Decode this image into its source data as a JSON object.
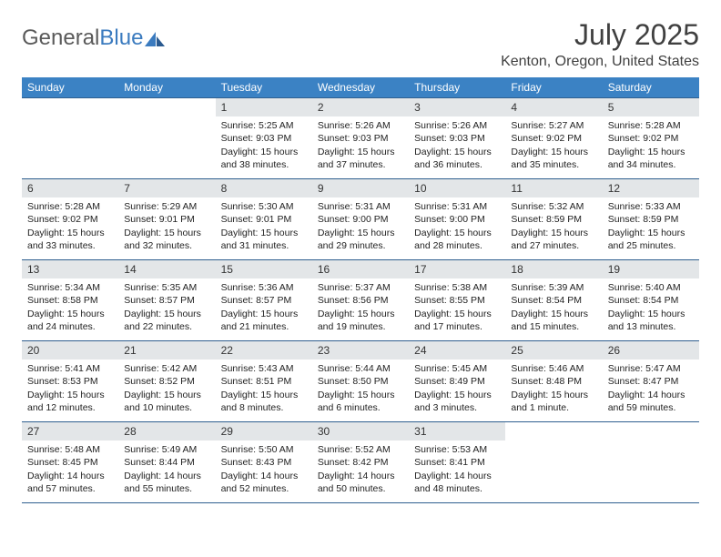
{
  "logo": {
    "word1": "General",
    "word2": "Blue"
  },
  "title": "July 2025",
  "location": "Kenton, Oregon, United States",
  "colors": {
    "header_bar": "#3b82c4",
    "header_text": "#ffffff",
    "rule": "#2f5f8f",
    "daynum_bg": "#e3e6e8",
    "body_text": "#222222",
    "page_bg": "#ffffff",
    "logo_gray": "#5a5a5a",
    "logo_blue": "#3b7bbf"
  },
  "day_headers": [
    "Sunday",
    "Monday",
    "Tuesday",
    "Wednesday",
    "Thursday",
    "Friday",
    "Saturday"
  ],
  "weeks": [
    [
      null,
      null,
      {
        "n": "1",
        "sr": "Sunrise: 5:25 AM",
        "ss": "Sunset: 9:03 PM",
        "d1": "Daylight: 15 hours",
        "d2": "and 38 minutes."
      },
      {
        "n": "2",
        "sr": "Sunrise: 5:26 AM",
        "ss": "Sunset: 9:03 PM",
        "d1": "Daylight: 15 hours",
        "d2": "and 37 minutes."
      },
      {
        "n": "3",
        "sr": "Sunrise: 5:26 AM",
        "ss": "Sunset: 9:03 PM",
        "d1": "Daylight: 15 hours",
        "d2": "and 36 minutes."
      },
      {
        "n": "4",
        "sr": "Sunrise: 5:27 AM",
        "ss": "Sunset: 9:02 PM",
        "d1": "Daylight: 15 hours",
        "d2": "and 35 minutes."
      },
      {
        "n": "5",
        "sr": "Sunrise: 5:28 AM",
        "ss": "Sunset: 9:02 PM",
        "d1": "Daylight: 15 hours",
        "d2": "and 34 minutes."
      }
    ],
    [
      {
        "n": "6",
        "sr": "Sunrise: 5:28 AM",
        "ss": "Sunset: 9:02 PM",
        "d1": "Daylight: 15 hours",
        "d2": "and 33 minutes."
      },
      {
        "n": "7",
        "sr": "Sunrise: 5:29 AM",
        "ss": "Sunset: 9:01 PM",
        "d1": "Daylight: 15 hours",
        "d2": "and 32 minutes."
      },
      {
        "n": "8",
        "sr": "Sunrise: 5:30 AM",
        "ss": "Sunset: 9:01 PM",
        "d1": "Daylight: 15 hours",
        "d2": "and 31 minutes."
      },
      {
        "n": "9",
        "sr": "Sunrise: 5:31 AM",
        "ss": "Sunset: 9:00 PM",
        "d1": "Daylight: 15 hours",
        "d2": "and 29 minutes."
      },
      {
        "n": "10",
        "sr": "Sunrise: 5:31 AM",
        "ss": "Sunset: 9:00 PM",
        "d1": "Daylight: 15 hours",
        "d2": "and 28 minutes."
      },
      {
        "n": "11",
        "sr": "Sunrise: 5:32 AM",
        "ss": "Sunset: 8:59 PM",
        "d1": "Daylight: 15 hours",
        "d2": "and 27 minutes."
      },
      {
        "n": "12",
        "sr": "Sunrise: 5:33 AM",
        "ss": "Sunset: 8:59 PM",
        "d1": "Daylight: 15 hours",
        "d2": "and 25 minutes."
      }
    ],
    [
      {
        "n": "13",
        "sr": "Sunrise: 5:34 AM",
        "ss": "Sunset: 8:58 PM",
        "d1": "Daylight: 15 hours",
        "d2": "and 24 minutes."
      },
      {
        "n": "14",
        "sr": "Sunrise: 5:35 AM",
        "ss": "Sunset: 8:57 PM",
        "d1": "Daylight: 15 hours",
        "d2": "and 22 minutes."
      },
      {
        "n": "15",
        "sr": "Sunrise: 5:36 AM",
        "ss": "Sunset: 8:57 PM",
        "d1": "Daylight: 15 hours",
        "d2": "and 21 minutes."
      },
      {
        "n": "16",
        "sr": "Sunrise: 5:37 AM",
        "ss": "Sunset: 8:56 PM",
        "d1": "Daylight: 15 hours",
        "d2": "and 19 minutes."
      },
      {
        "n": "17",
        "sr": "Sunrise: 5:38 AM",
        "ss": "Sunset: 8:55 PM",
        "d1": "Daylight: 15 hours",
        "d2": "and 17 minutes."
      },
      {
        "n": "18",
        "sr": "Sunrise: 5:39 AM",
        "ss": "Sunset: 8:54 PM",
        "d1": "Daylight: 15 hours",
        "d2": "and 15 minutes."
      },
      {
        "n": "19",
        "sr": "Sunrise: 5:40 AM",
        "ss": "Sunset: 8:54 PM",
        "d1": "Daylight: 15 hours",
        "d2": "and 13 minutes."
      }
    ],
    [
      {
        "n": "20",
        "sr": "Sunrise: 5:41 AM",
        "ss": "Sunset: 8:53 PM",
        "d1": "Daylight: 15 hours",
        "d2": "and 12 minutes."
      },
      {
        "n": "21",
        "sr": "Sunrise: 5:42 AM",
        "ss": "Sunset: 8:52 PM",
        "d1": "Daylight: 15 hours",
        "d2": "and 10 minutes."
      },
      {
        "n": "22",
        "sr": "Sunrise: 5:43 AM",
        "ss": "Sunset: 8:51 PM",
        "d1": "Daylight: 15 hours",
        "d2": "and 8 minutes."
      },
      {
        "n": "23",
        "sr": "Sunrise: 5:44 AM",
        "ss": "Sunset: 8:50 PM",
        "d1": "Daylight: 15 hours",
        "d2": "and 6 minutes."
      },
      {
        "n": "24",
        "sr": "Sunrise: 5:45 AM",
        "ss": "Sunset: 8:49 PM",
        "d1": "Daylight: 15 hours",
        "d2": "and 3 minutes."
      },
      {
        "n": "25",
        "sr": "Sunrise: 5:46 AM",
        "ss": "Sunset: 8:48 PM",
        "d1": "Daylight: 15 hours",
        "d2": "and 1 minute."
      },
      {
        "n": "26",
        "sr": "Sunrise: 5:47 AM",
        "ss": "Sunset: 8:47 PM",
        "d1": "Daylight: 14 hours",
        "d2": "and 59 minutes."
      }
    ],
    [
      {
        "n": "27",
        "sr": "Sunrise: 5:48 AM",
        "ss": "Sunset: 8:45 PM",
        "d1": "Daylight: 14 hours",
        "d2": "and 57 minutes."
      },
      {
        "n": "28",
        "sr": "Sunrise: 5:49 AM",
        "ss": "Sunset: 8:44 PM",
        "d1": "Daylight: 14 hours",
        "d2": "and 55 minutes."
      },
      {
        "n": "29",
        "sr": "Sunrise: 5:50 AM",
        "ss": "Sunset: 8:43 PM",
        "d1": "Daylight: 14 hours",
        "d2": "and 52 minutes."
      },
      {
        "n": "30",
        "sr": "Sunrise: 5:52 AM",
        "ss": "Sunset: 8:42 PM",
        "d1": "Daylight: 14 hours",
        "d2": "and 50 minutes."
      },
      {
        "n": "31",
        "sr": "Sunrise: 5:53 AM",
        "ss": "Sunset: 8:41 PM",
        "d1": "Daylight: 14 hours",
        "d2": "and 48 minutes."
      },
      null,
      null
    ]
  ]
}
